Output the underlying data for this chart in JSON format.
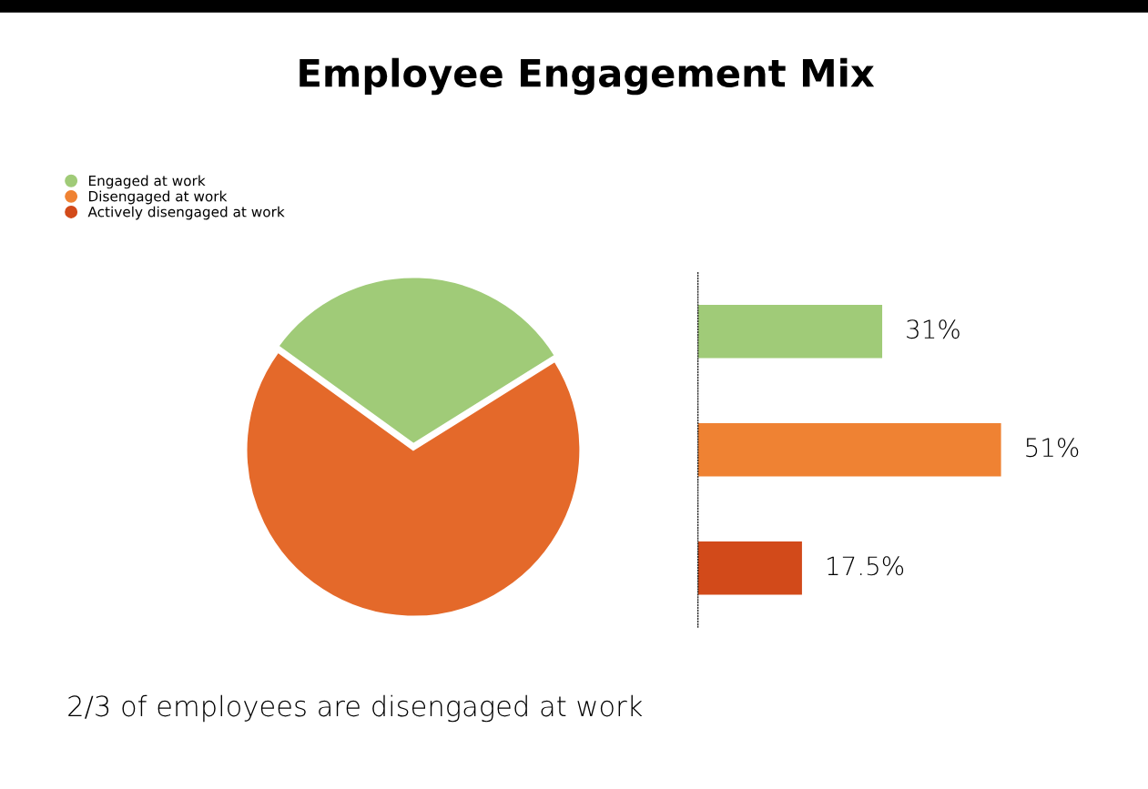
{
  "chart_data": [
    {
      "type": "pie",
      "title": "Employee Engagement Mix",
      "categories": [
        null,
        null
      ],
      "values": [
        31,
        68.5
      ],
      "colors": [
        "#a0cb78",
        "#e4692a"
      ],
      "annotations": [
        "2/3 of employees are disengaged at work"
      ]
    },
    {
      "type": "bar",
      "orientation": "horizontal",
      "stacked": true,
      "categories": [
        null,
        null,
        null
      ],
      "legend": "top left",
      "series": [
        {
          "name": "Engaged at work",
          "color": "#a0cb78",
          "values": [
            31,
            null,
            null
          ],
          "value_labels": [
            "31%",
            null,
            null
          ]
        },
        {
          "name": "Disengaged at work",
          "color": "#ef8233",
          "values": [
            null,
            51,
            null
          ],
          "value_labels": [
            null,
            "51%",
            null
          ]
        },
        {
          "name": "Actively disengaged at work",
          "color": "#d24a1a",
          "values": [
            null,
            null,
            17.5
          ],
          "value_labels": [
            null,
            null,
            "17.5%"
          ]
        }
      ]
    }
  ]
}
